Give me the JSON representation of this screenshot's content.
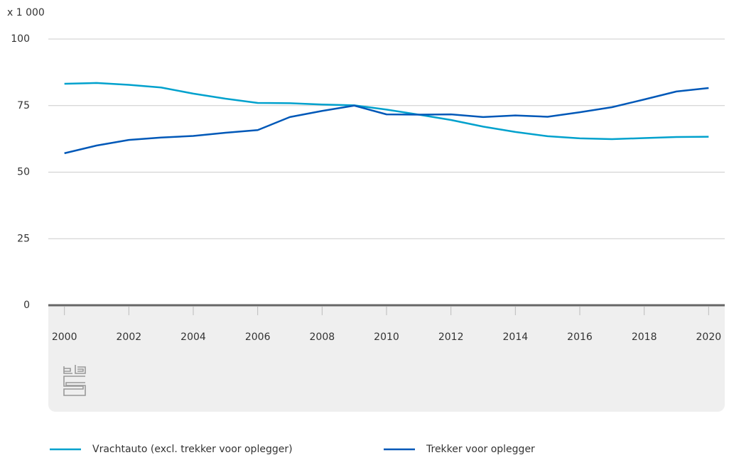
{
  "chart_data": {
    "type": "line",
    "y_unit_label": "x 1 000",
    "x": [
      2000,
      2001,
      2002,
      2003,
      2004,
      2005,
      2006,
      2007,
      2008,
      2009,
      2010,
      2011,
      2012,
      2013,
      2014,
      2015,
      2016,
      2017,
      2018,
      2019,
      2020
    ],
    "series": [
      {
        "name": "Vrachtauto (excl. trekker voor oplegger)",
        "color": "#00a1cd",
        "values": [
          83.2,
          83.5,
          82.8,
          81.8,
          79.5,
          77.6,
          76.0,
          75.9,
          75.4,
          75.1,
          73.5,
          71.6,
          69.6,
          67.1,
          65.1,
          63.5,
          62.7,
          62.4,
          62.8,
          63.2,
          63.3
        ]
      },
      {
        "name": "Trekker voor oplegger",
        "color": "#0058b8",
        "values": [
          57.1,
          60.0,
          62.1,
          63.0,
          63.6,
          64.8,
          65.8,
          70.7,
          73.0,
          75.0,
          71.7,
          71.6,
          71.7,
          70.7,
          71.3,
          70.8,
          72.5,
          74.4,
          77.3,
          80.3,
          81.6
        ]
      }
    ],
    "xlim": [
      1999.5,
      2020.5
    ],
    "xticks": [
      2000,
      2002,
      2004,
      2006,
      2008,
      2010,
      2012,
      2014,
      2016,
      2018,
      2020
    ],
    "ylim": [
      0,
      100
    ],
    "yticks": [
      0,
      25,
      50,
      75,
      100
    ],
    "grid": true,
    "legend": "bottom"
  }
}
